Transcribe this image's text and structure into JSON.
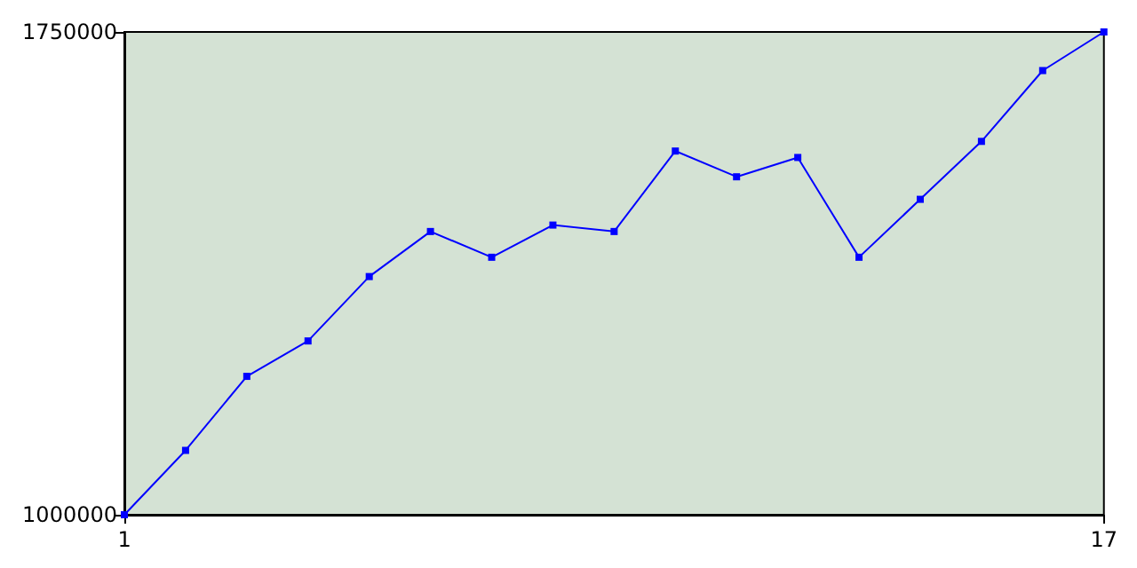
{
  "chart_data": {
    "type": "line",
    "x": [
      1,
      2,
      3,
      4,
      5,
      6,
      7,
      8,
      9,
      10,
      11,
      12,
      13,
      14,
      15,
      16,
      17
    ],
    "values": [
      1000000,
      1100000,
      1215000,
      1270000,
      1370000,
      1440000,
      1400000,
      1450000,
      1440000,
      1565000,
      1525000,
      1555000,
      1400000,
      1490000,
      1580000,
      1690000,
      1750000
    ],
    "color": "#0000ff",
    "marker": "square",
    "grid": false,
    "xlim": [
      1,
      17
    ],
    "xticks": [
      1,
      17
    ],
    "ylim": [
      1000000,
      1750000
    ],
    "yticks": [
      1000000,
      1750000
    ]
  }
}
